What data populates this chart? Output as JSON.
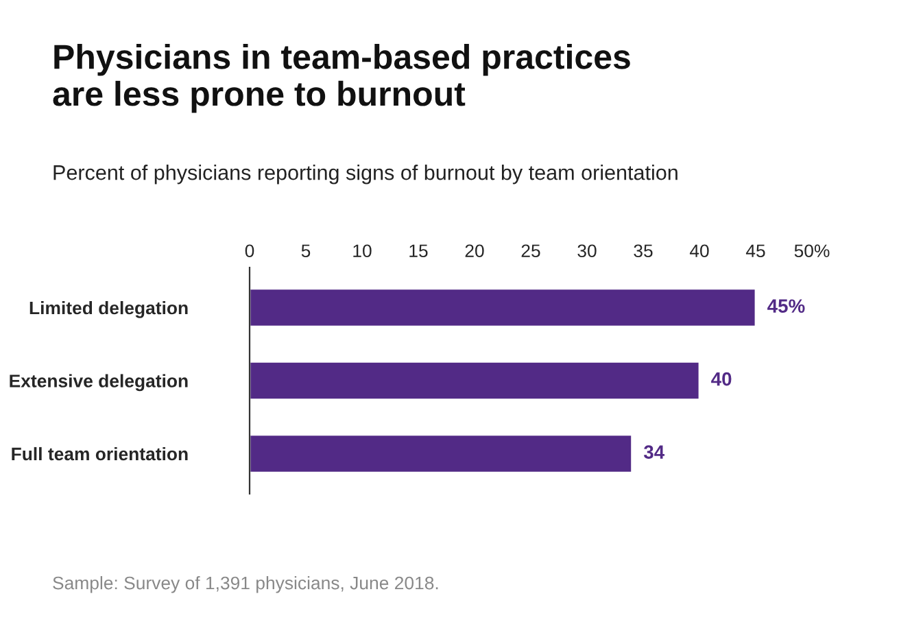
{
  "chart_data": {
    "type": "bar",
    "orientation": "horizontal",
    "title": "Physicians in team-based practices\nare less prone to burnout",
    "subtitle": "Percent of physicians reporting signs of burnout by team orientation",
    "categories": [
      "Limited delegation",
      "Extensive delegation",
      "Full team orientation"
    ],
    "values": [
      45,
      40,
      34
    ],
    "value_labels": [
      "45%",
      "40",
      "34"
    ],
    "color": "#522a86",
    "xlim": [
      0,
      50
    ],
    "xticks": [
      0,
      5,
      10,
      15,
      20,
      25,
      30,
      35,
      40,
      45,
      {
        "value": 50,
        "label": "50%"
      }
    ],
    "grid": false,
    "annotations": [
      "Sample: Survey of 1,391 physicians, June 2018."
    ]
  }
}
